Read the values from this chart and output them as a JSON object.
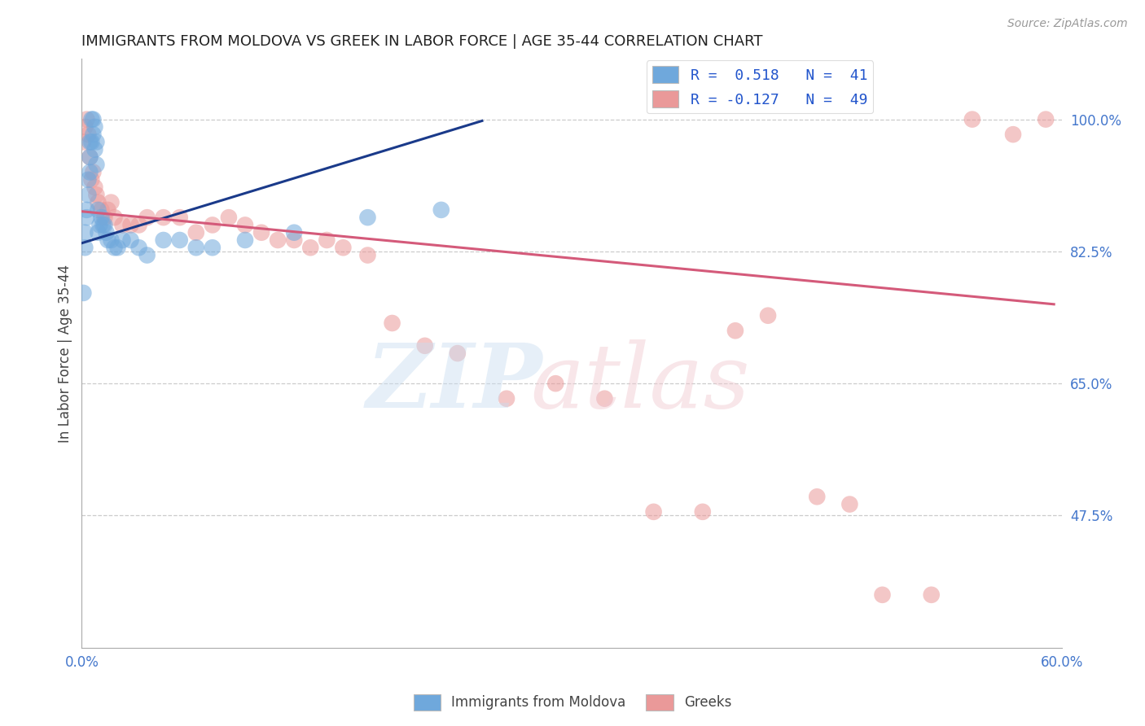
{
  "title": "IMMIGRANTS FROM MOLDOVA VS GREEK IN LABOR FORCE | AGE 35-44 CORRELATION CHART",
  "source": "Source: ZipAtlas.com",
  "ylabel": "In Labor Force | Age 35-44",
  "xlim": [
    0.0,
    0.6
  ],
  "ylim": [
    0.3,
    1.08
  ],
  "ytick_positions": [
    0.475,
    0.65,
    0.825,
    1.0
  ],
  "ytick_labels_right": [
    "47.5%",
    "65.0%",
    "82.5%",
    "100.0%"
  ],
  "legend_R1": "R =  0.518",
  "legend_N1": "N =  41",
  "legend_R2": "R = -0.127",
  "legend_N2": "N =  49",
  "blue_color": "#6fa8dc",
  "pink_color": "#ea9999",
  "blue_line_color": "#1a3a8a",
  "pink_line_color": "#d45a7a",
  "moldova_x": [
    0.001,
    0.002,
    0.002,
    0.003,
    0.003,
    0.004,
    0.004,
    0.005,
    0.005,
    0.005,
    0.006,
    0.006,
    0.007,
    0.007,
    0.008,
    0.008,
    0.009,
    0.009,
    0.01,
    0.01,
    0.011,
    0.012,
    0.013,
    0.014,
    0.015,
    0.016,
    0.018,
    0.02,
    0.022,
    0.025,
    0.03,
    0.035,
    0.04,
    0.05,
    0.06,
    0.07,
    0.08,
    0.1,
    0.13,
    0.175,
    0.22
  ],
  "moldova_y": [
    0.77,
    0.83,
    0.85,
    0.87,
    0.88,
    0.9,
    0.92,
    0.93,
    0.95,
    0.97,
    0.97,
    1.0,
    0.98,
    1.0,
    0.96,
    0.99,
    0.94,
    0.97,
    0.85,
    0.88,
    0.86,
    0.87,
    0.86,
    0.86,
    0.85,
    0.84,
    0.84,
    0.83,
    0.83,
    0.84,
    0.84,
    0.83,
    0.82,
    0.84,
    0.84,
    0.83,
    0.83,
    0.84,
    0.85,
    0.87,
    0.88
  ],
  "greek_x": [
    0.001,
    0.002,
    0.003,
    0.004,
    0.005,
    0.006,
    0.007,
    0.008,
    0.009,
    0.01,
    0.012,
    0.014,
    0.016,
    0.018,
    0.02,
    0.025,
    0.03,
    0.035,
    0.04,
    0.05,
    0.06,
    0.07,
    0.08,
    0.09,
    0.1,
    0.11,
    0.12,
    0.13,
    0.14,
    0.15,
    0.16,
    0.175,
    0.19,
    0.21,
    0.23,
    0.26,
    0.29,
    0.32,
    0.35,
    0.38,
    0.4,
    0.42,
    0.45,
    0.47,
    0.49,
    0.52,
    0.545,
    0.57,
    0.59
  ],
  "greek_y": [
    0.97,
    0.99,
    1.0,
    0.98,
    0.95,
    0.92,
    0.93,
    0.91,
    0.9,
    0.89,
    0.88,
    0.87,
    0.88,
    0.89,
    0.87,
    0.86,
    0.86,
    0.86,
    0.87,
    0.87,
    0.87,
    0.85,
    0.86,
    0.87,
    0.86,
    0.85,
    0.84,
    0.84,
    0.83,
    0.84,
    0.83,
    0.82,
    0.73,
    0.7,
    0.69,
    0.63,
    0.65,
    0.63,
    0.48,
    0.48,
    0.72,
    0.74,
    0.5,
    0.49,
    0.37,
    0.37,
    1.0,
    0.98,
    1.0
  ],
  "blue_line_x0": 0.0,
  "blue_line_x1": 0.245,
  "blue_line_y0": 0.836,
  "blue_line_y1": 0.998,
  "pink_line_x0": 0.0,
  "pink_line_x1": 0.595,
  "pink_line_y0": 0.878,
  "pink_line_y1": 0.755
}
